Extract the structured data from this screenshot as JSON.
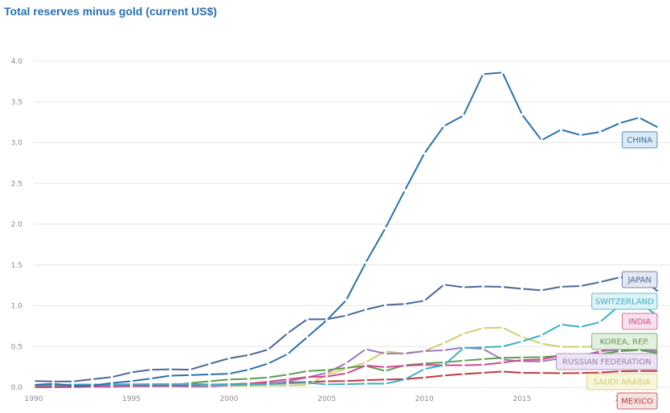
{
  "chart_data": {
    "type": "line",
    "title": "Total reserves minus gold (current US$)",
    "xlabel": "",
    "ylabel": "",
    "x": [
      1990,
      1991,
      1992,
      1993,
      1994,
      1995,
      1996,
      1997,
      1998,
      1999,
      2000,
      2001,
      2002,
      2003,
      2004,
      2005,
      2006,
      2007,
      2008,
      2009,
      2010,
      2011,
      2012,
      2013,
      2014,
      2015,
      2016,
      2017,
      2018,
      2019,
      2020,
      2021,
      2022
    ],
    "xlim": [
      1990,
      2022
    ],
    "ylim": [
      0,
      4.0
    ],
    "x_ticks": [
      "1990",
      "1995",
      "2000",
      "2005",
      "2010",
      "2015",
      "20"
    ],
    "x_tick_values": [
      1990,
      1995,
      2000,
      2005,
      2010,
      2015,
      2020
    ],
    "y_ticks": [
      "0.0",
      "0.5",
      "1.0",
      "1.5",
      "2.0",
      "2.5",
      "3.0",
      "3.5",
      "4.0"
    ],
    "y_tick_values": [
      0,
      0.5,
      1.0,
      1.5,
      2.0,
      2.5,
      3.0,
      3.5,
      4.0
    ],
    "grid": true,
    "series": [
      {
        "name": "MEXICO",
        "color": "#c0393f",
        "label_bg": "#f7e3e3",
        "values": [
          0.01,
          0.018,
          0.019,
          0.025,
          0.006,
          0.017,
          0.019,
          0.028,
          0.031,
          0.031,
          0.035,
          0.044,
          0.05,
          0.059,
          0.064,
          0.074,
          0.076,
          0.087,
          0.095,
          0.1,
          0.12,
          0.144,
          0.163,
          0.177,
          0.193,
          0.177,
          0.176,
          0.173,
          0.175,
          0.181,
          0.196,
          0.199,
          0.199
        ]
      },
      {
        "name": "SAUDI ARABIA",
        "color": "#cfcf6e",
        "label_bg": "#f7f5dc",
        "values": [
          0.012,
          0.012,
          0.006,
          0.007,
          0.007,
          0.009,
          0.014,
          0.015,
          0.014,
          0.017,
          0.02,
          0.017,
          0.021,
          0.023,
          0.027,
          0.155,
          0.226,
          0.305,
          0.443,
          0.41,
          0.445,
          0.541,
          0.657,
          0.726,
          0.732,
          0.616,
          0.536,
          0.496,
          0.496,
          0.5,
          0.453,
          0.455,
          0.46
        ]
      },
      {
        "name": "RUSSIAN FEDERATION",
        "color": "#9b7ab8",
        "label_bg": "#ece4f2",
        "values": [
          0.0,
          0.0,
          0.001,
          0.006,
          0.004,
          0.014,
          0.011,
          0.013,
          0.008,
          0.008,
          0.024,
          0.033,
          0.044,
          0.073,
          0.121,
          0.176,
          0.296,
          0.467,
          0.412,
          0.416,
          0.443,
          0.454,
          0.487,
          0.47,
          0.34,
          0.319,
          0.317,
          0.356,
          0.382,
          0.444,
          0.457,
          0.466,
          0.44
        ]
      },
      {
        "name": "KOREA, REP.",
        "color": "#5e9c4f",
        "label_bg": "#e3efdf",
        "values": [
          0.015,
          0.014,
          0.017,
          0.02,
          0.026,
          0.033,
          0.034,
          0.02,
          0.052,
          0.074,
          0.096,
          0.103,
          0.121,
          0.155,
          0.199,
          0.21,
          0.239,
          0.262,
          0.201,
          0.27,
          0.292,
          0.306,
          0.327,
          0.345,
          0.362,
          0.366,
          0.369,
          0.387,
          0.402,
          0.407,
          0.442,
          0.456,
          0.417
        ]
      },
      {
        "name": "INDIA",
        "color": "#d0488f",
        "label_bg": "#f7e1ec",
        "values": [
          0.002,
          0.004,
          0.006,
          0.011,
          0.021,
          0.018,
          0.02,
          0.024,
          0.027,
          0.033,
          0.038,
          0.046,
          0.068,
          0.099,
          0.126,
          0.132,
          0.171,
          0.267,
          0.247,
          0.265,
          0.275,
          0.271,
          0.27,
          0.276,
          0.303,
          0.334,
          0.341,
          0.391,
          0.374,
          0.431,
          0.543,
          0.569,
          0.534
        ]
      },
      {
        "name": "SWITZERLAND",
        "color": "#3ab0c3",
        "label_bg": "#dff2f5",
        "values": [
          0.03,
          0.03,
          0.033,
          0.034,
          0.035,
          0.037,
          0.038,
          0.039,
          0.041,
          0.036,
          0.033,
          0.032,
          0.04,
          0.048,
          0.055,
          0.036,
          0.038,
          0.044,
          0.045,
          0.095,
          0.224,
          0.271,
          0.481,
          0.49,
          0.5,
          0.562,
          0.639,
          0.77,
          0.74,
          0.8,
          1.005,
          1.038,
          0.866
        ]
      },
      {
        "name": "JAPAN",
        "color": "#4b6698",
        "label_bg": "#e3e8f1",
        "values": [
          0.078,
          0.072,
          0.072,
          0.099,
          0.125,
          0.183,
          0.216,
          0.22,
          0.216,
          0.287,
          0.355,
          0.395,
          0.462,
          0.663,
          0.834,
          0.834,
          0.88,
          0.953,
          1.009,
          1.022,
          1.061,
          1.258,
          1.227,
          1.237,
          1.231,
          1.208,
          1.189,
          1.233,
          1.241,
          1.29,
          1.348,
          1.358,
          1.168
        ]
      },
      {
        "name": "CHINA",
        "color": "#2a72aa",
        "label_bg": "#dceaf4",
        "values": [
          0.029,
          0.043,
          0.02,
          0.022,
          0.052,
          0.075,
          0.107,
          0.143,
          0.149,
          0.158,
          0.166,
          0.216,
          0.291,
          0.408,
          0.614,
          0.822,
          1.069,
          1.529,
          1.95,
          2.416,
          2.867,
          3.203,
          3.331,
          3.84,
          3.859,
          3.345,
          3.029,
          3.159,
          3.092,
          3.131,
          3.238,
          3.306,
          3.181
        ]
      }
    ]
  }
}
